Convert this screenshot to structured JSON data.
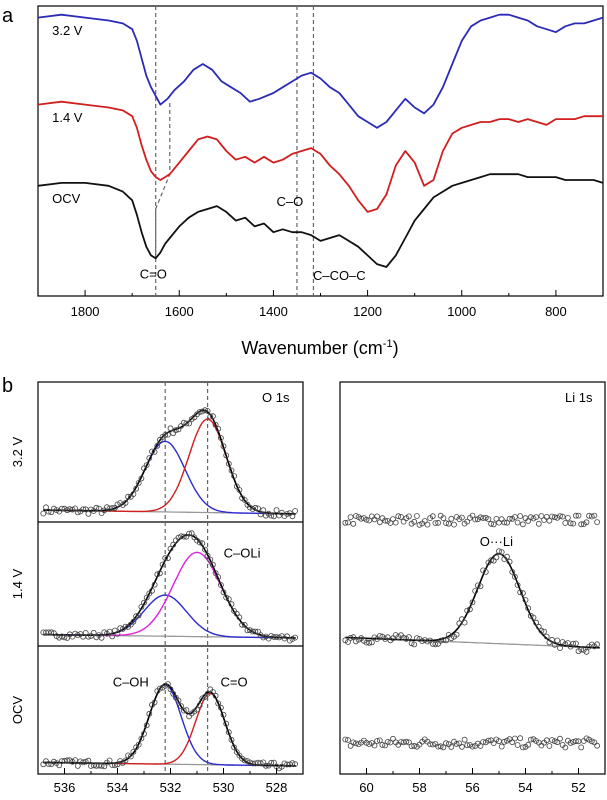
{
  "panel_labels": {
    "a": "a",
    "b": "b"
  },
  "chart_data": [
    {
      "id": "ftir",
      "type": "line",
      "xlabel": "Wavenumber (cm",
      "xlabel_sup": "-1",
      "xlabel_end": ")",
      "xlim": [
        1900,
        700
      ],
      "xticks": [
        "1800",
        "1600",
        "1400",
        "1200",
        "1000",
        "800"
      ],
      "xtick_values": [
        1800,
        1600,
        1400,
        1200,
        1000,
        800
      ],
      "series": [
        {
          "name": "3.2 V",
          "color": "#2b2bb8",
          "x": [
            1900,
            1850,
            1800,
            1750,
            1720,
            1700,
            1690,
            1680,
            1670,
            1660,
            1650,
            1640,
            1625,
            1610,
            1590,
            1570,
            1550,
            1530,
            1510,
            1490,
            1470,
            1450,
            1430,
            1400,
            1380,
            1360,
            1340,
            1320,
            1300,
            1280,
            1260,
            1240,
            1220,
            1200,
            1180,
            1160,
            1140,
            1120,
            1100,
            1080,
            1060,
            1040,
            1020,
            1000,
            980,
            960,
            940,
            920,
            900,
            880,
            860,
            840,
            820,
            800,
            780,
            760,
            740,
            720,
            700
          ],
          "y": [
            0.96,
            0.97,
            0.96,
            0.95,
            0.94,
            0.92,
            0.88,
            0.82,
            0.76,
            0.72,
            0.69,
            0.66,
            0.68,
            0.71,
            0.74,
            0.78,
            0.8,
            0.78,
            0.74,
            0.72,
            0.7,
            0.67,
            0.68,
            0.7,
            0.72,
            0.74,
            0.76,
            0.77,
            0.75,
            0.72,
            0.7,
            0.66,
            0.62,
            0.6,
            0.58,
            0.6,
            0.64,
            0.68,
            0.65,
            0.63,
            0.66,
            0.72,
            0.8,
            0.88,
            0.93,
            0.95,
            0.96,
            0.97,
            0.97,
            0.96,
            0.95,
            0.93,
            0.92,
            0.91,
            0.93,
            0.94,
            0.94,
            0.95,
            0.96
          ]
        },
        {
          "name": "1.4 V",
          "color": "#d21e1e",
          "x": [
            1900,
            1850,
            1800,
            1750,
            1720,
            1700,
            1690,
            1680,
            1670,
            1660,
            1650,
            1640,
            1630,
            1620,
            1600,
            1580,
            1560,
            1540,
            1520,
            1500,
            1480,
            1460,
            1440,
            1420,
            1400,
            1380,
            1360,
            1340,
            1320,
            1300,
            1280,
            1260,
            1240,
            1220,
            1200,
            1180,
            1160,
            1140,
            1120,
            1100,
            1080,
            1060,
            1040,
            1020,
            1000,
            980,
            960,
            940,
            920,
            900,
            880,
            860,
            840,
            820,
            800,
            780,
            760,
            740,
            720,
            700
          ],
          "y": [
            0.66,
            0.67,
            0.66,
            0.65,
            0.64,
            0.62,
            0.58,
            0.52,
            0.47,
            0.43,
            0.41,
            0.4,
            0.41,
            0.42,
            0.46,
            0.5,
            0.54,
            0.55,
            0.54,
            0.5,
            0.47,
            0.48,
            0.46,
            0.48,
            0.46,
            0.47,
            0.49,
            0.5,
            0.51,
            0.49,
            0.45,
            0.42,
            0.38,
            0.33,
            0.29,
            0.3,
            0.35,
            0.45,
            0.5,
            0.46,
            0.38,
            0.4,
            0.5,
            0.56,
            0.58,
            0.59,
            0.6,
            0.6,
            0.61,
            0.61,
            0.6,
            0.61,
            0.6,
            0.59,
            0.61,
            0.61,
            0.61,
            0.62,
            0.62,
            0.62
          ]
        },
        {
          "name": "OCV",
          "color": "#111111",
          "x": [
            1900,
            1850,
            1800,
            1750,
            1720,
            1700,
            1690,
            1680,
            1670,
            1660,
            1650,
            1640,
            1630,
            1620,
            1600,
            1580,
            1560,
            1540,
            1520,
            1500,
            1480,
            1460,
            1440,
            1420,
            1400,
            1380,
            1360,
            1340,
            1320,
            1300,
            1280,
            1260,
            1240,
            1220,
            1200,
            1180,
            1160,
            1140,
            1120,
            1100,
            1080,
            1060,
            1040,
            1020,
            1000,
            980,
            960,
            940,
            920,
            900,
            880,
            860,
            840,
            820,
            800,
            780,
            760,
            740,
            720,
            700
          ],
          "y": [
            0.38,
            0.39,
            0.39,
            0.38,
            0.36,
            0.33,
            0.28,
            0.22,
            0.17,
            0.14,
            0.13,
            0.15,
            0.18,
            0.2,
            0.24,
            0.27,
            0.29,
            0.3,
            0.31,
            0.29,
            0.26,
            0.27,
            0.24,
            0.25,
            0.22,
            0.23,
            0.22,
            0.22,
            0.21,
            0.19,
            0.2,
            0.21,
            0.19,
            0.17,
            0.14,
            0.11,
            0.1,
            0.14,
            0.2,
            0.26,
            0.3,
            0.34,
            0.36,
            0.38,
            0.39,
            0.4,
            0.41,
            0.42,
            0.42,
            0.42,
            0.42,
            0.41,
            0.41,
            0.41,
            0.41,
            0.4,
            0.4,
            0.4,
            0.4,
            0.39
          ]
        }
      ],
      "series_labels": [
        {
          "text": "3.2 V",
          "x": 1870,
          "y": 0.9
        },
        {
          "text": "1.4 V",
          "x": 1870,
          "y": 0.6
        },
        {
          "text": "OCV",
          "x": 1870,
          "y": 0.32
        }
      ],
      "annotations": [
        {
          "text": "C=O",
          "x": 1655,
          "y": 0.06
        },
        {
          "text": "C–O",
          "x": 1365,
          "y": 0.31
        },
        {
          "text": "C–CO–C",
          "x": 1260,
          "y": 0.055
        }
      ],
      "reference_lines": [
        1650,
        1350,
        1315
      ],
      "shift_line": [
        [
          1650,
          0.13
        ],
        [
          1650,
          0.3
        ],
        [
          1620,
          0.42
        ],
        [
          1620,
          0.67
        ]
      ],
      "ylim": [
        0,
        1
      ]
    },
    {
      "id": "xps-o1s",
      "type": "scatter",
      "title": "O 1s",
      "xlim": [
        537,
        527
      ],
      "xticks": [
        "536",
        "534",
        "532",
        "530",
        "528"
      ],
      "xtick_values": [
        536,
        534,
        532,
        530,
        528
      ],
      "reference_lines": [
        532.2,
        530.6
      ],
      "rows": [
        {
          "label": "3.2 V",
          "baseline": 0.0,
          "components": [
            {
              "name": "C–OH",
              "color": "#2b2bd2",
              "center": 532.2,
              "height": 0.62,
              "width": 0.75
            },
            {
              "name": "C=O",
              "color": "#d21e1e",
              "center": 530.6,
              "height": 0.82,
              "width": 0.7
            }
          ]
        },
        {
          "label": "1.4 V",
          "baseline": 0.0,
          "components": [
            {
              "name": "C–OH",
              "color": "#2b2bd2",
              "center": 532.2,
              "height": 0.42,
              "width": 0.8
            },
            {
              "name": "C–OLi",
              "color": "#dd22dd",
              "center": 531.0,
              "height": 0.86,
              "width": 0.9
            }
          ]
        },
        {
          "label": "OCV",
          "baseline": 0.0,
          "components": [
            {
              "name": "C–OH",
              "color": "#2b2bd2",
              "center": 532.2,
              "height": 0.78,
              "width": 0.6
            },
            {
              "name": "C=O",
              "color": "#d21e1e",
              "center": 530.5,
              "height": 0.7,
              "width": 0.55
            }
          ]
        }
      ],
      "component_labels": [
        {
          "text": "C–OLi",
          "color": "#dd22dd",
          "x": 529.3,
          "row": 1,
          "y": 0.82
        },
        {
          "text": "C–OH",
          "color": "#2b2bd2",
          "x": 533.5,
          "row": 2,
          "y": 0.78
        },
        {
          "text": "C=O",
          "color": "#d21e1e",
          "x": 529.6,
          "row": 2,
          "y": 0.78
        }
      ]
    },
    {
      "id": "xps-li1s",
      "type": "scatter",
      "title": "Li 1s",
      "xlim": [
        61,
        51
      ],
      "xticks": [
        "60",
        "58",
        "56",
        "54",
        "52"
      ],
      "xtick_values": [
        60,
        58,
        56,
        54,
        52
      ],
      "rows": [
        {
          "label": "3.2 V",
          "peak": null
        },
        {
          "label": "1.4 V",
          "peak": {
            "name": "O···Li",
            "center": 55.0,
            "height": 0.75,
            "width": 0.8
          }
        },
        {
          "label": "OCV",
          "peak": null
        }
      ],
      "peak_label": {
        "text": "O···Li",
        "x": 55.1,
        "row": 1,
        "y": 0.85
      }
    }
  ]
}
